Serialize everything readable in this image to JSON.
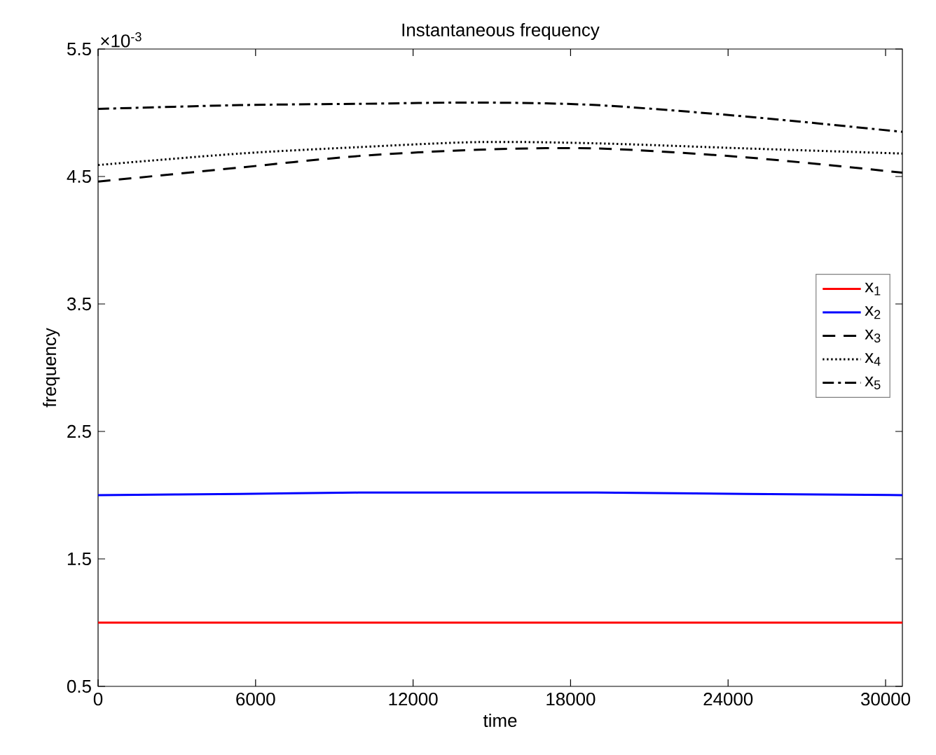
{
  "chart_data": {
    "type": "line",
    "title": "Instantaneous frequency",
    "xlabel": "time",
    "ylabel": "frequency",
    "annotations": [
      "×10$^{-3}$"
    ],
    "x": [
      0,
      5400,
      9900,
      14500,
      19000,
      24700,
      30640
    ],
    "series": [
      {
        "name": "x$_{1}$",
        "color": "#ff0000",
        "line_style": "solid",
        "values": [
          1.0,
          1.0,
          1.0,
          1.0,
          1.0,
          1.0,
          1.0
        ]
      },
      {
        "name": "x$_{2}$",
        "color": "#0000ff",
        "line_style": "solid",
        "values": [
          2.0,
          2.01,
          2.02,
          2.02,
          2.02,
          2.01,
          2.0
        ]
      },
      {
        "name": "x$_{3}$",
        "color": "#000000",
        "line_style": "dashed",
        "values": [
          4.46,
          4.57,
          4.66,
          4.71,
          4.72,
          4.65,
          4.53
        ]
      },
      {
        "name": "x$_{4}$",
        "color": "#000000",
        "line_style": "dotted",
        "values": [
          4.59,
          4.68,
          4.73,
          4.77,
          4.76,
          4.72,
          4.68
        ]
      },
      {
        "name": "x$_{5}$",
        "color": "#000000",
        "line_style": "dashdot",
        "values": [
          5.03,
          5.06,
          5.07,
          5.08,
          5.06,
          4.97,
          4.85
        ]
      }
    ],
    "xlim": [
      0,
      30640
    ],
    "ylim": [
      0.5,
      5.5
    ],
    "xticks": [
      0,
      6000,
      12000,
      18000,
      24000,
      30000
    ],
    "yticks": [
      0.5,
      1.5,
      2.5,
      3.5,
      4.5,
      5.5
    ],
    "legend": "right",
    "grid": false,
    "marker": "none"
  }
}
